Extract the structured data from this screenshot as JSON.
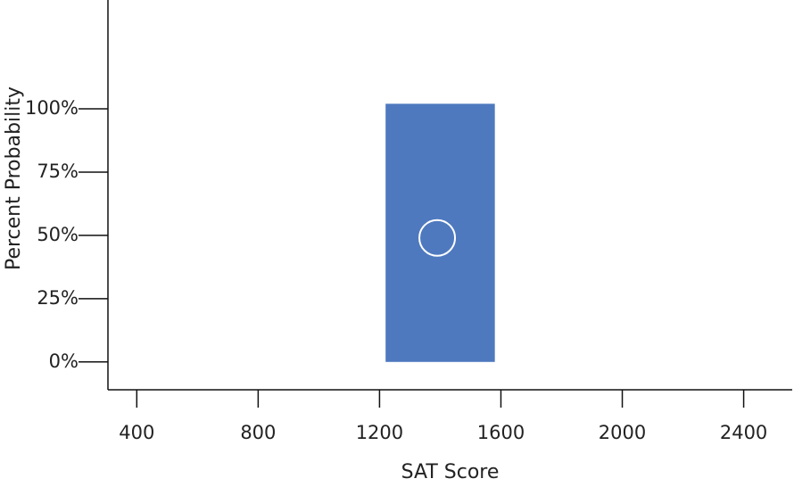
{
  "chart_data": {
    "type": "bar",
    "xlabel": "SAT Score",
    "ylabel": "Percent Probability",
    "x_ticks": [
      400,
      800,
      1200,
      1600,
      2000,
      2400
    ],
    "x_tick_labels": [
      "400",
      "800",
      "1200",
      "1600",
      "2000",
      "2400"
    ],
    "y_ticks": [
      0,
      25,
      50,
      75,
      100
    ],
    "y_tick_labels": [
      "0%",
      "25%",
      "50%",
      "75%",
      "100%"
    ],
    "xlim": [
      305,
      2560
    ],
    "ylim": [
      -11,
      143
    ],
    "bar": {
      "x_start": 1220,
      "x_end": 1580,
      "y_bottom": 0,
      "y_top": 102
    },
    "marker": {
      "x": 1390,
      "y": 49,
      "shape": "circle"
    },
    "grid": false,
    "colors": {
      "bar": "#4e79bf",
      "marker": "#ffffff",
      "axis": "#111111",
      "text": "#222222"
    }
  }
}
